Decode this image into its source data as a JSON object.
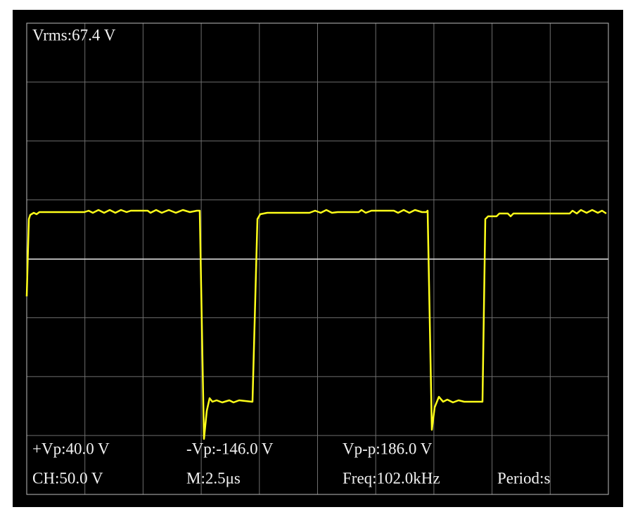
{
  "readouts": {
    "vrms": "Vrms:67.4 V",
    "vp_pos": "+Vp:40.0 V",
    "vp_neg": "-Vp:-146.0 V",
    "vpp": "Vp-p:186.0 V",
    "channel": "CH:50.0 V",
    "timebase": "M:2.5μs",
    "freq": "Freq:102.0kHz",
    "period": "Period:s"
  }
}
